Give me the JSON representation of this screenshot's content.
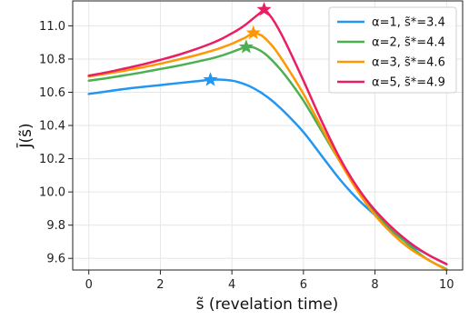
{
  "chart_data": {
    "type": "line",
    "xlabel": "s̃ (revelation time)",
    "ylabel": "J̄(s̃)",
    "xlim": [
      -0.45,
      10.45
    ],
    "ylim": [
      9.53,
      11.15
    ],
    "x_ticks": [
      0,
      2,
      4,
      6,
      8,
      10
    ],
    "x_tick_labels": [
      "0",
      "2",
      "4",
      "6",
      "8",
      "10"
    ],
    "y_ticks": [
      9.6,
      9.8,
      10.0,
      10.2,
      10.4,
      10.6,
      10.8,
      11.0
    ],
    "y_tick_labels": [
      "9.6",
      "9.8",
      "10.0",
      "10.2",
      "10.4",
      "10.6",
      "10.8",
      "11.0"
    ],
    "grid": true,
    "legend_position": "top-right",
    "x": [
      0,
      0.5,
      1,
      1.5,
      2,
      2.5,
      3,
      3.4,
      3.7,
      4,
      4.2,
      4.4,
      4.6,
      4.8,
      4.9,
      5,
      5.2,
      5.5,
      6,
      6.5,
      7,
      7.5,
      8,
      8.5,
      9,
      9.5,
      10
    ],
    "series": [
      {
        "name": "α=1, s̃*=3.4",
        "color": "#2196f3",
        "values": [
          10.59,
          10.605,
          10.62,
          10.632,
          10.643,
          10.655,
          10.666,
          10.675,
          10.676,
          10.67,
          10.66,
          10.645,
          10.625,
          10.6,
          10.585,
          10.57,
          10.535,
          10.475,
          10.36,
          10.22,
          10.08,
          9.96,
          9.86,
          9.76,
          9.68,
          9.62,
          9.565
        ]
      },
      {
        "name": "α=2, s̃*=4.4",
        "color": "#4caf50",
        "values": [
          10.67,
          10.685,
          10.702,
          10.72,
          10.74,
          10.76,
          10.783,
          10.802,
          10.82,
          10.842,
          10.858,
          10.872,
          10.87,
          10.85,
          10.835,
          10.818,
          10.775,
          10.7,
          10.55,
          10.37,
          10.19,
          10.03,
          9.88,
          9.77,
          9.67,
          9.59,
          9.535
        ]
      },
      {
        "name": "α=3, s̃*=4.6",
        "color": "#ff9800",
        "values": [
          10.695,
          10.712,
          10.73,
          10.75,
          10.772,
          10.797,
          10.823,
          10.847,
          10.868,
          10.892,
          10.912,
          10.932,
          10.957,
          10.945,
          10.93,
          10.91,
          10.86,
          10.765,
          10.59,
          10.39,
          10.19,
          10.01,
          9.86,
          9.745,
          9.655,
          9.59,
          9.53
        ]
      },
      {
        "name": "α=5, s̃*=4.9",
        "color": "#e91e63",
        "values": [
          10.7,
          10.72,
          10.743,
          10.767,
          10.795,
          10.825,
          10.86,
          10.892,
          10.92,
          10.955,
          10.98,
          11.01,
          11.045,
          11.08,
          11.098,
          11.08,
          11.02,
          10.9,
          10.67,
          10.43,
          10.21,
          10.03,
          9.89,
          9.78,
          9.69,
          9.62,
          9.565
        ]
      }
    ],
    "optima": [
      {
        "x": 3.4,
        "y": 10.675
      },
      {
        "x": 4.4,
        "y": 10.872
      },
      {
        "x": 4.6,
        "y": 10.957
      },
      {
        "x": 4.9,
        "y": 11.098
      }
    ]
  }
}
